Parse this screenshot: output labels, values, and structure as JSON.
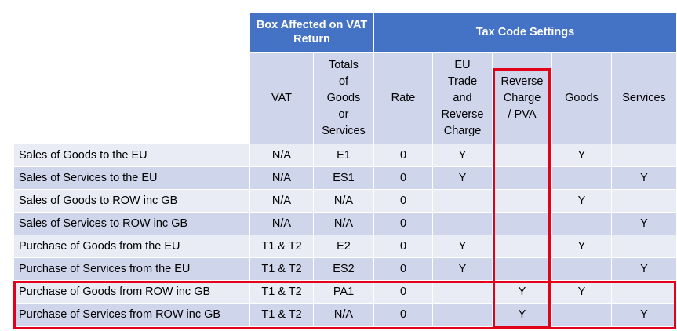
{
  "header": {
    "group_box": "Box Affected on VAT Return",
    "group_tax": "Tax Code Settings"
  },
  "columns": {
    "vat": "VAT",
    "totals": [
      "Totals",
      "of",
      "Goods",
      "or",
      "Services"
    ],
    "rate": "Rate",
    "eu_trade": [
      "EU",
      "Trade",
      "and",
      "Reverse",
      "Charge"
    ],
    "reverse": [
      "Reverse",
      "Charge",
      "/ PVA"
    ],
    "goods": "Goods",
    "services": "Services"
  },
  "rows": [
    {
      "label": "Sales of Goods to the EU",
      "vat": "N/A",
      "totals": "E1",
      "rate": "0",
      "eu_trade": "Y",
      "reverse": "",
      "goods": "Y",
      "services": ""
    },
    {
      "label": "Sales of Services to the EU",
      "vat": "N/A",
      "totals": "ES1",
      "rate": "0",
      "eu_trade": "Y",
      "reverse": "",
      "goods": "",
      "services": "Y"
    },
    {
      "label": "Sales of Goods to ROW inc GB",
      "vat": "N/A",
      "totals": "N/A",
      "rate": "0",
      "eu_trade": "",
      "reverse": "",
      "goods": "Y",
      "services": ""
    },
    {
      "label": "Sales of Services to ROW inc GB",
      "vat": "N/A",
      "totals": "N/A",
      "rate": "0",
      "eu_trade": "",
      "reverse": "",
      "goods": "",
      "services": "Y"
    },
    {
      "label": "Purchase of Goods from the EU",
      "vat": "T1 & T2",
      "totals": "E2",
      "rate": "0",
      "eu_trade": "Y",
      "reverse": "",
      "goods": "Y",
      "services": ""
    },
    {
      "label": "Purchase of Services from the EU",
      "vat": "T1 & T2",
      "totals": "ES2",
      "rate": "0",
      "eu_trade": "Y",
      "reverse": "",
      "goods": "",
      "services": "Y"
    },
    {
      "label": "Purchase of Goods from ROW inc GB",
      "vat": "T1 & T2",
      "totals": "PA1",
      "rate": "0",
      "eu_trade": "",
      "reverse": "Y",
      "goods": "Y",
      "services": ""
    },
    {
      "label": "Purchase of Services from ROW inc GB",
      "vat": "T1 & T2",
      "totals": "N/A",
      "rate": "0",
      "eu_trade": "",
      "reverse": "Y",
      "goods": "",
      "services": "Y"
    }
  ],
  "highlights": {
    "color": "#e3001b"
  }
}
